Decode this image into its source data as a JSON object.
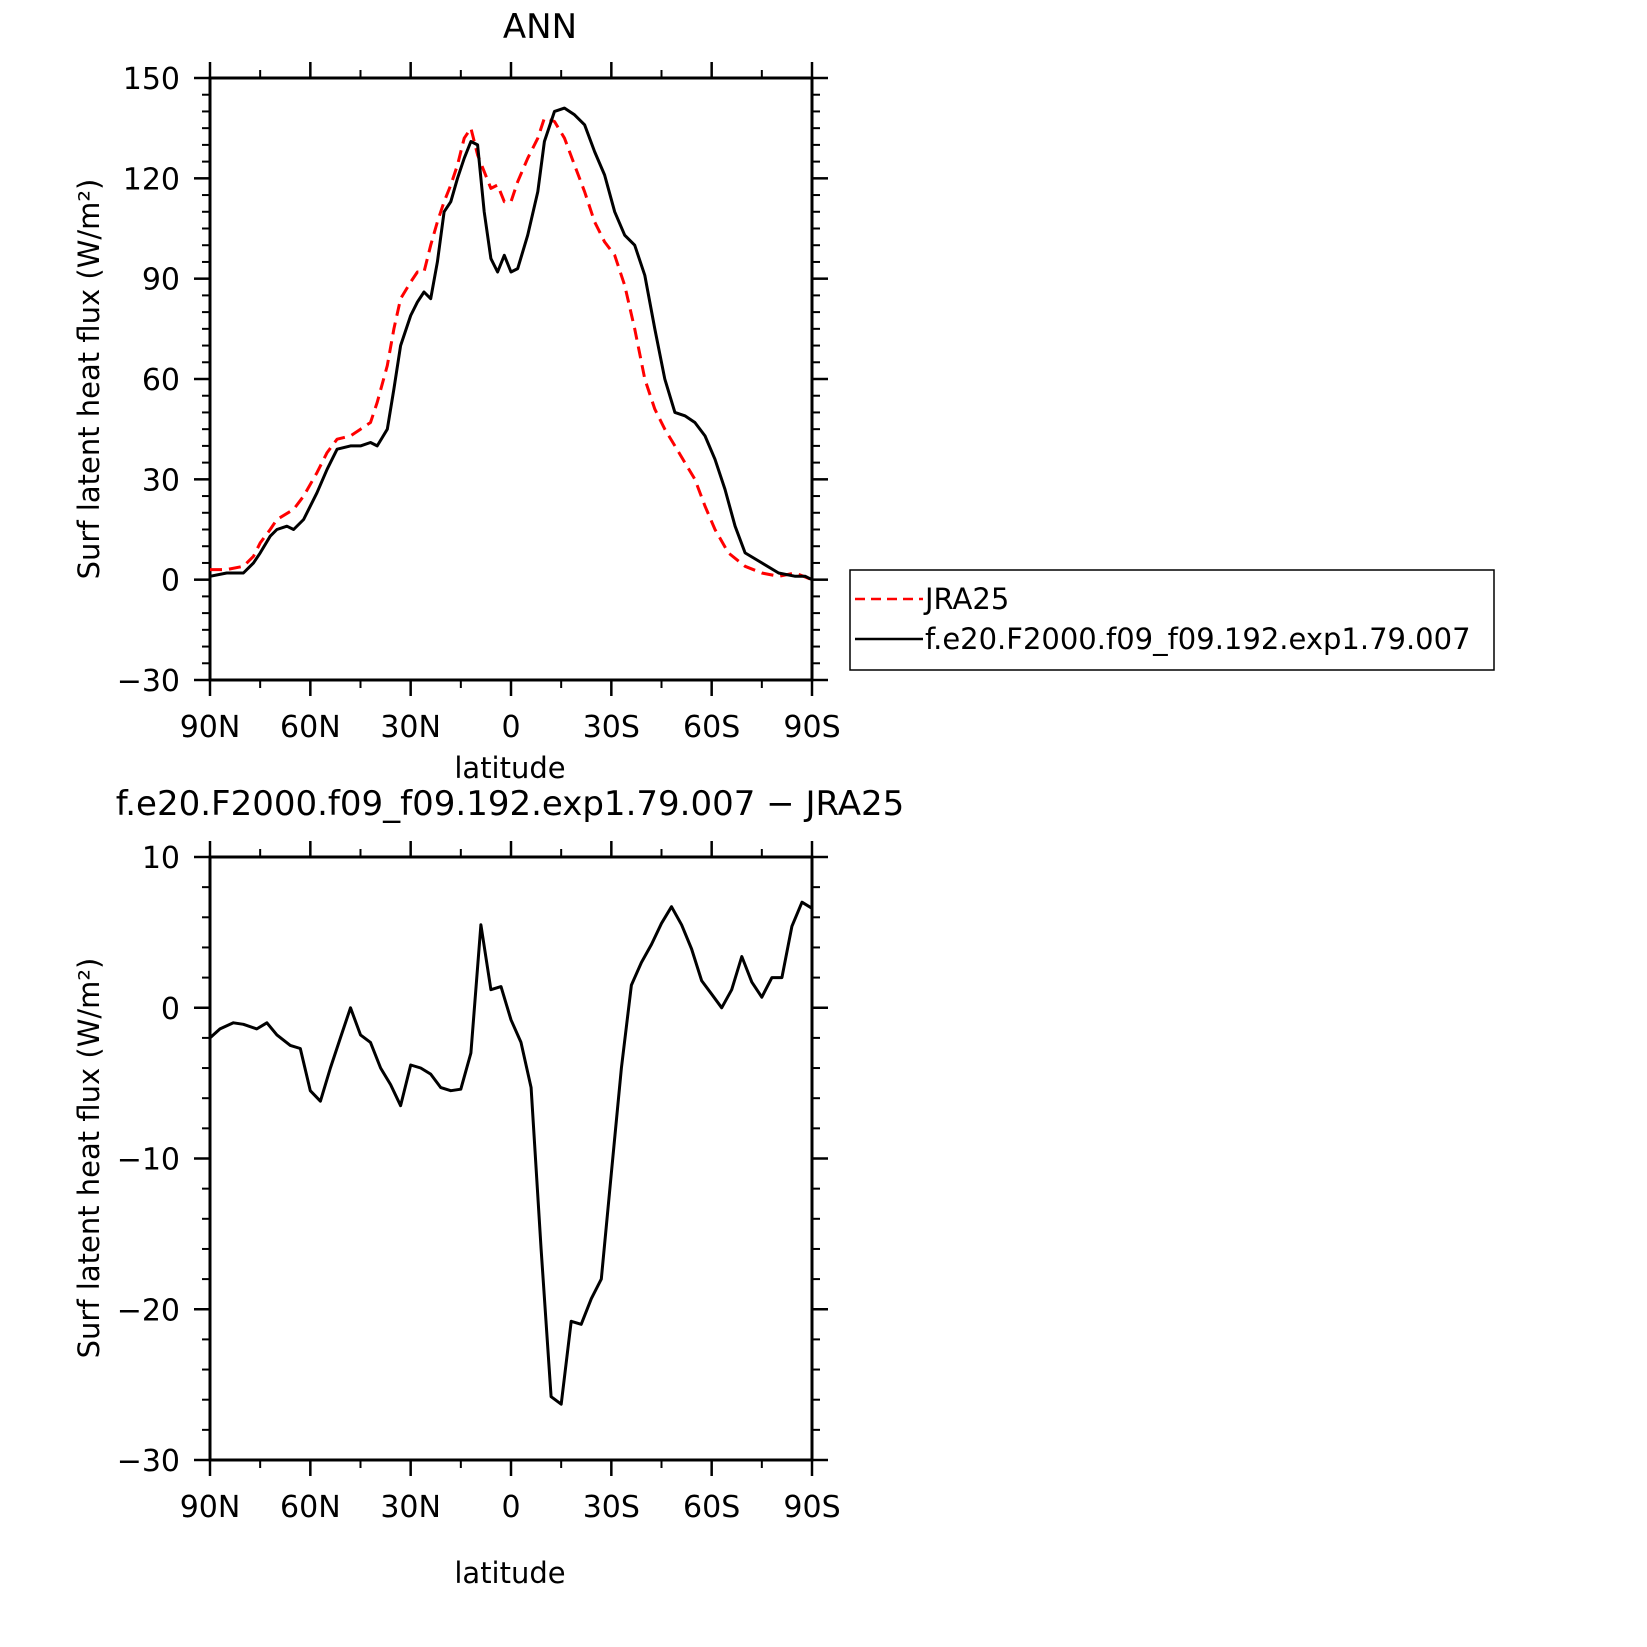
{
  "chart_data": [
    {
      "type": "line",
      "title": "ANN",
      "xlabel": "latitude",
      "ylabel": "Surf latent heat flux (W/m²)",
      "xlim": [
        90,
        -90
      ],
      "ylim": [
        -30,
        150
      ],
      "xticks": [
        90,
        60,
        30,
        0,
        -30,
        -60,
        -90
      ],
      "xtick_labels": [
        "90N",
        "60N",
        "30N",
        "0",
        "30S",
        "60S",
        "90S"
      ],
      "yticks": [
        -30,
        0,
        30,
        60,
        90,
        120,
        150
      ],
      "ytick_labels": [
        "−30",
        "0",
        "30",
        "60",
        "90",
        "120",
        "150"
      ],
      "grid": false,
      "legend_position": "right",
      "series": [
        {
          "name": "JRA25",
          "color": "#ff0000",
          "style": "dashed",
          "points": [
            [
              90,
              3
            ],
            [
              85,
              3
            ],
            [
              80,
              4
            ],
            [
              77,
              7
            ],
            [
              75,
              11
            ],
            [
              72,
              15
            ],
            [
              70,
              18
            ],
            [
              65,
              21
            ],
            [
              62,
              25
            ],
            [
              58,
              32
            ],
            [
              55,
              38
            ],
            [
              52,
              42
            ],
            [
              48,
              43
            ],
            [
              45,
              45
            ],
            [
              42,
              47
            ],
            [
              40,
              53
            ],
            [
              37,
              64
            ],
            [
              35,
              75
            ],
            [
              33,
              84
            ],
            [
              30,
              89
            ],
            [
              28,
              92
            ],
            [
              26,
              92
            ],
            [
              24,
              100
            ],
            [
              22,
              107
            ],
            [
              20,
              113
            ],
            [
              18,
              118
            ],
            [
              16,
              124
            ],
            [
              14,
              132
            ],
            [
              12,
              135
            ],
            [
              10,
              127
            ],
            [
              8,
              122
            ],
            [
              6,
              117
            ],
            [
              4,
              118
            ],
            [
              2,
              113
            ],
            [
              0,
              113
            ],
            [
              -2,
              119
            ],
            [
              -5,
              126
            ],
            [
              -8,
              132
            ],
            [
              -10,
              138
            ],
            [
              -13,
              137
            ],
            [
              -16,
              132
            ],
            [
              -19,
              124
            ],
            [
              -22,
              116
            ],
            [
              -25,
              107
            ],
            [
              -28,
              101
            ],
            [
              -31,
              97
            ],
            [
              -34,
              88
            ],
            [
              -37,
              75
            ],
            [
              -40,
              60
            ],
            [
              -43,
              51
            ],
            [
              -46,
              45
            ],
            [
              -49,
              40
            ],
            [
              -52,
              35
            ],
            [
              -55,
              30
            ],
            [
              -58,
              22
            ],
            [
              -61,
              15
            ],
            [
              -65,
              8
            ],
            [
              -70,
              4
            ],
            [
              -75,
              2
            ],
            [
              -80,
              1
            ],
            [
              -85,
              2
            ],
            [
              -90,
              0
            ]
          ]
        },
        {
          "name": "f.e20.F2000.f09_f09.192.exp1.79.007",
          "color": "#000000",
          "style": "solid",
          "points": [
            [
              90,
              1
            ],
            [
              85,
              2
            ],
            [
              80,
              2
            ],
            [
              77,
              5
            ],
            [
              75,
              8
            ],
            [
              72,
              13
            ],
            [
              70,
              15
            ],
            [
              67,
              16
            ],
            [
              65,
              15
            ],
            [
              62,
              18
            ],
            [
              58,
              26
            ],
            [
              55,
              33
            ],
            [
              52,
              39
            ],
            [
              48,
              40
            ],
            [
              45,
              40
            ],
            [
              42,
              41
            ],
            [
              40,
              40
            ],
            [
              37,
              45
            ],
            [
              35,
              57
            ],
            [
              33,
              70
            ],
            [
              30,
              79
            ],
            [
              28,
              83
            ],
            [
              26,
              86
            ],
            [
              24,
              84
            ],
            [
              22,
              95
            ],
            [
              20,
              110
            ],
            [
              18,
              113
            ],
            [
              16,
              120
            ],
            [
              14,
              126
            ],
            [
              12,
              131
            ],
            [
              10,
              130
            ],
            [
              8,
              110
            ],
            [
              6,
              96
            ],
            [
              4,
              92
            ],
            [
              2,
              97
            ],
            [
              0,
              92
            ],
            [
              -2,
              93
            ],
            [
              -5,
              103
            ],
            [
              -8,
              116
            ],
            [
              -10,
              131
            ],
            [
              -13,
              140
            ],
            [
              -16,
              141
            ],
            [
              -19,
              139
            ],
            [
              -22,
              136
            ],
            [
              -25,
              128
            ],
            [
              -28,
              121
            ],
            [
              -31,
              110
            ],
            [
              -34,
              103
            ],
            [
              -37,
              100
            ],
            [
              -40,
              91
            ],
            [
              -43,
              75
            ],
            [
              -46,
              60
            ],
            [
              -49,
              50
            ],
            [
              -52,
              49
            ],
            [
              -55,
              47
            ],
            [
              -58,
              43
            ],
            [
              -61,
              36
            ],
            [
              -64,
              27
            ],
            [
              -67,
              16
            ],
            [
              -70,
              8
            ],
            [
              -75,
              5
            ],
            [
              -80,
              2
            ],
            [
              -85,
              1
            ],
            [
              -88,
              1
            ],
            [
              -90,
              0
            ]
          ]
        }
      ]
    },
    {
      "type": "line",
      "title": "f.e20.F2000.f09_f09.192.exp1.79.007 − JRA25",
      "xlabel": "latitude",
      "ylabel": "Surf latent heat flux (W/m²)",
      "xlim": [
        90,
        -90
      ],
      "ylim": [
        -30,
        10
      ],
      "xticks": [
        90,
        60,
        30,
        0,
        -30,
        -60,
        -90
      ],
      "xtick_labels": [
        "90N",
        "60N",
        "30N",
        "0",
        "30S",
        "60S",
        "90S"
      ],
      "yticks": [
        -30,
        -20,
        -10,
        0,
        10
      ],
      "ytick_labels": [
        "−30",
        "−20",
        "−10",
        "0",
        "10"
      ],
      "grid": false,
      "series": [
        {
          "color": "#000000",
          "style": "solid",
          "points": [
            [
              90,
              -2
            ],
            [
              87,
              -1.4
            ],
            [
              83,
              -1
            ],
            [
              80,
              -1.1
            ],
            [
              76,
              -1.4
            ],
            [
              73,
              -1
            ],
            [
              70,
              -1.8
            ],
            [
              66,
              -2.5
            ],
            [
              63,
              -2.7
            ],
            [
              60,
              -5.5
            ],
            [
              57,
              -6.2
            ],
            [
              54,
              -4
            ],
            [
              51,
              -2
            ],
            [
              48,
              0
            ],
            [
              45,
              -1.8
            ],
            [
              42,
              -2.3
            ],
            [
              39,
              -4
            ],
            [
              36,
              -5.1
            ],
            [
              33,
              -6.5
            ],
            [
              30,
              -3.8
            ],
            [
              27,
              -4
            ],
            [
              24,
              -4.4
            ],
            [
              21,
              -5.3
            ],
            [
              18,
              -5.5
            ],
            [
              15,
              -5.4
            ],
            [
              12,
              -3
            ],
            [
              9,
              5.5
            ],
            [
              6,
              1.2
            ],
            [
              3,
              1.4
            ],
            [
              0,
              -0.8
            ],
            [
              -3,
              -2.3
            ],
            [
              -6,
              -5.3
            ],
            [
              -9,
              -16
            ],
            [
              -12,
              -25.8
            ],
            [
              -15,
              -26.3
            ],
            [
              -18,
              -20.8
            ],
            [
              -21,
              -21
            ],
            [
              -24,
              -19.3
            ],
            [
              -27,
              -18
            ],
            [
              -30,
              -11
            ],
            [
              -33,
              -4
            ],
            [
              -36,
              1.5
            ],
            [
              -39,
              3
            ],
            [
              -42,
              4.2
            ],
            [
              -45,
              5.6
            ],
            [
              -48,
              6.7
            ],
            [
              -51,
              5.5
            ],
            [
              -54,
              3.9
            ],
            [
              -57,
              1.8
            ],
            [
              -60,
              0.9
            ],
            [
              -63,
              0
            ],
            [
              -66,
              1.2
            ],
            [
              -69,
              3.4
            ],
            [
              -72,
              1.7
            ],
            [
              -75,
              0.7
            ],
            [
              -78,
              2
            ],
            [
              -81,
              2
            ],
            [
              -84,
              5.4
            ],
            [
              -87,
              7
            ],
            [
              -90,
              6.6
            ]
          ]
        }
      ]
    }
  ]
}
